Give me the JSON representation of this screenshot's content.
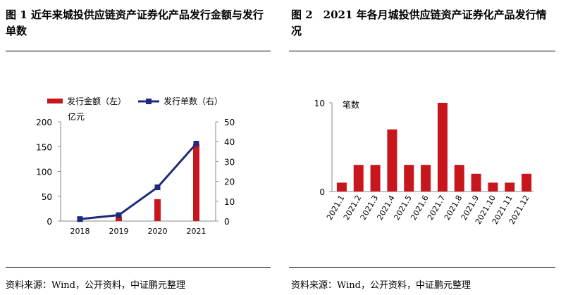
{
  "figure1": {
    "title": "图 1 近年来城投供应链资产证券化产品发行金额与发行单数",
    "source": "资料来源：Wind，公开资料，中证鹏元整理"
  },
  "figure2": {
    "title": "图 2　2021 年各月城投供应链资产证券化产品发行情况",
    "source": "资料来源：Wind，公开资料，中证鹏元整理"
  },
  "chart_data": [
    {
      "type": "bar",
      "categories": [
        "2018",
        "2019",
        "2020",
        "2021"
      ],
      "series": [
        {
          "name": "发行金额（左）",
          "type": "bar",
          "axis": "left",
          "color": "#c8161d",
          "values": [
            1,
            8,
            44,
            155
          ]
        },
        {
          "name": "发行单数（右）",
          "type": "line",
          "axis": "right",
          "color": "#1f2a7a",
          "values": [
            1,
            3,
            17,
            39
          ]
        }
      ],
      "ylabel": "亿元",
      "ylim": [
        0,
        200
      ],
      "yticks": [
        0,
        50,
        100,
        150,
        200
      ],
      "y2lim": [
        0,
        50
      ],
      "y2ticks": [
        0,
        10,
        20,
        30,
        40,
        50
      ],
      "legend": "top",
      "grid": false
    },
    {
      "type": "bar",
      "categories": [
        "2021.1",
        "2021.2",
        "2021.3",
        "2021.4",
        "2021.5",
        "2021.6",
        "2021.7",
        "2021.8",
        "2021.9",
        "2021.10",
        "2021.11",
        "2021.12"
      ],
      "values": [
        1,
        3,
        3,
        7,
        3,
        3,
        10,
        3,
        2,
        1,
        1,
        2
      ],
      "color": "#c8161d",
      "ylabel": "笔数",
      "ylim": [
        0,
        10
      ],
      "yticks": [
        0,
        10
      ],
      "grid": false
    }
  ]
}
